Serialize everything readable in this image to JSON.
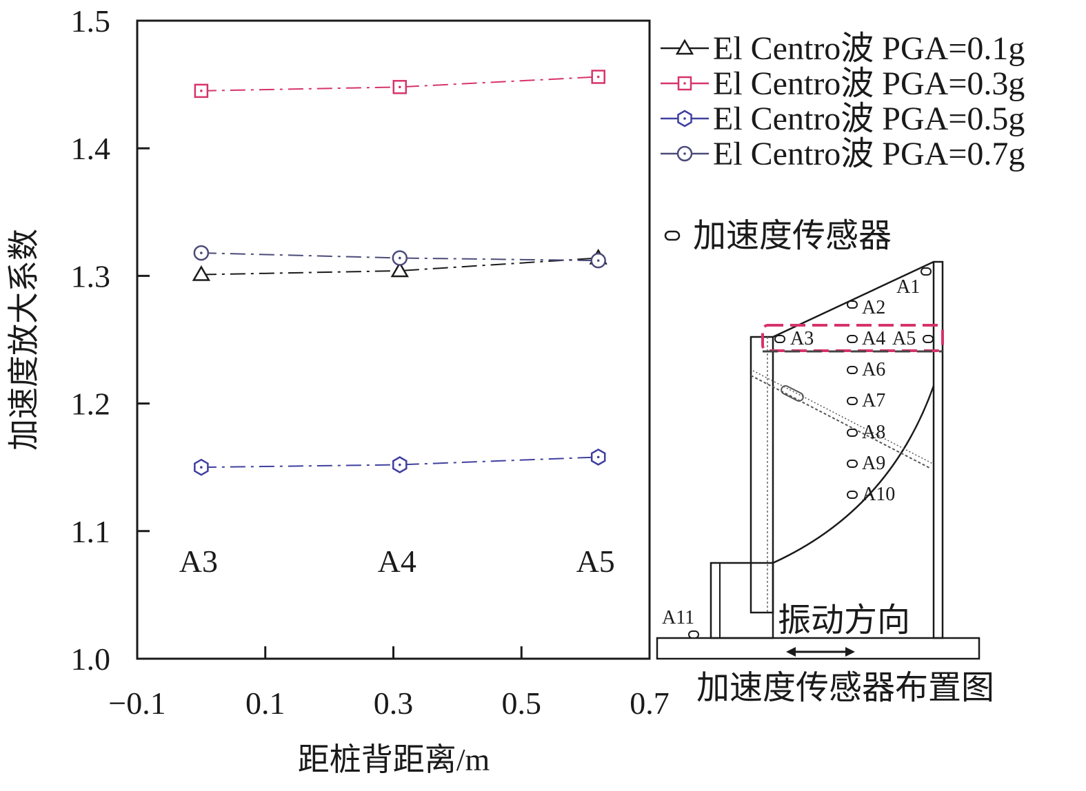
{
  "chart_data": {
    "type": "line",
    "xlabel": "距桩背距离/m",
    "ylabel": "加速度放大系数",
    "xlim": [
      -0.1,
      0.7
    ],
    "ylim": [
      1.0,
      1.5
    ],
    "x_ticks": [
      -0.1,
      0.1,
      0.3,
      0.5,
      0.7
    ],
    "x_tick_labels": [
      "−0.1",
      "0.1",
      "0.3",
      "0.5",
      "0.7"
    ],
    "y_ticks": [
      1.0,
      1.1,
      1.2,
      1.3,
      1.4,
      1.5
    ],
    "y_tick_labels": [
      "1.0",
      "1.1",
      "1.2",
      "1.3",
      "1.4",
      "1.5"
    ],
    "legend_position": "top-right",
    "grid": false,
    "x": [
      0.0,
      0.31,
      0.62
    ],
    "point_labels": [
      "A3",
      "A4",
      "A5"
    ],
    "series": [
      {
        "name": "El Centro波 PGA=0.1g",
        "marker": "triangle",
        "color": "#1a1a1a",
        "values": [
          1.301,
          1.304,
          1.314
        ]
      },
      {
        "name": "El Centro波 PGA=0.3g",
        "marker": "square",
        "color": "#d6336c",
        "values": [
          1.445,
          1.448,
          1.456
        ]
      },
      {
        "name": "El Centro波 PGA=0.5g",
        "marker": "hexagon",
        "color": "#3f3f9f",
        "values": [
          1.15,
          1.152,
          1.158
        ]
      },
      {
        "name": "El Centro波 PGA=0.7g",
        "marker": "circle",
        "color": "#4a4a7a",
        "values": [
          1.318,
          1.314,
          1.312
        ]
      }
    ]
  },
  "inset": {
    "sensor_legend": "加速度传感器",
    "title": "加速度传感器布置图",
    "vibration_label": "振动方向",
    "sensors": [
      "A1",
      "A2",
      "A3",
      "A4",
      "A5",
      "A6",
      "A7",
      "A8",
      "A9",
      "A10",
      "A11"
    ],
    "highlight_color": "#d6336c"
  }
}
